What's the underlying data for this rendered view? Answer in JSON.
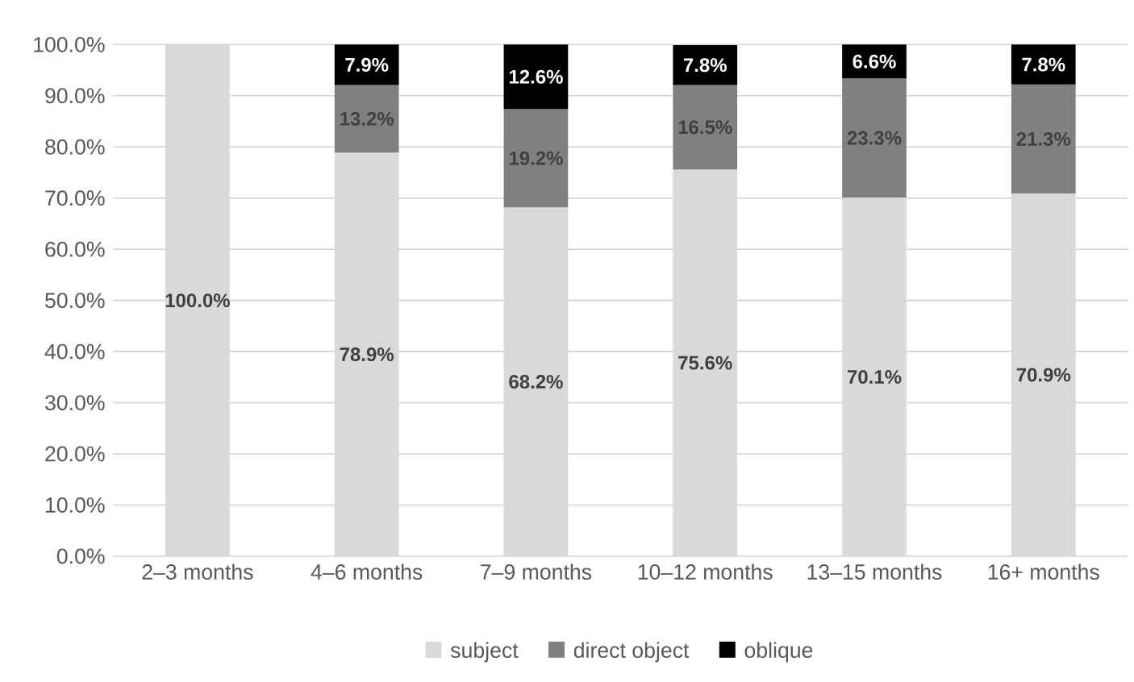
{
  "chart_data": {
    "type": "bar",
    "stacked": true,
    "categories": [
      "2–3 months",
      "4–6 months",
      "7–9 months",
      "10–12 months",
      "13–15 months",
      "16+ months"
    ],
    "series": [
      {
        "name": "subject",
        "color": "#d9d9d9",
        "values": [
          100.0,
          78.9,
          68.2,
          75.6,
          70.1,
          70.9
        ],
        "value_labels": [
          "100.0%",
          "78.9%",
          "68.2%",
          "75.6%",
          "70.1%",
          "70.9%"
        ]
      },
      {
        "name": "direct object",
        "color": "#808080",
        "values": [
          null,
          13.2,
          19.2,
          16.5,
          23.3,
          21.3
        ],
        "value_labels": [
          null,
          "13.2%",
          "19.2%",
          "16.5%",
          "23.3%",
          "21.3%"
        ]
      },
      {
        "name": "oblique",
        "color": "#000000",
        "values": [
          null,
          7.9,
          12.6,
          7.8,
          6.6,
          7.8
        ],
        "value_labels": [
          null,
          "7.9%",
          "12.6%",
          "7.8%",
          "6.6%",
          "7.8%"
        ]
      }
    ],
    "ylim": [
      0,
      100
    ],
    "yticks": [
      {
        "value": 0,
        "label": "0.0%"
      },
      {
        "value": 10,
        "label": "10.0%"
      },
      {
        "value": 20,
        "label": "20.0%"
      },
      {
        "value": 30,
        "label": "30.0%"
      },
      {
        "value": 40,
        "label": "40.0%"
      },
      {
        "value": 50,
        "label": "50.0%"
      },
      {
        "value": 60,
        "label": "60.0%"
      },
      {
        "value": 70,
        "label": "70.0%"
      },
      {
        "value": 80,
        "label": "80.0%"
      },
      {
        "value": 90,
        "label": "90.0%"
      },
      {
        "value": 100,
        "label": "100.0%"
      }
    ],
    "grid": "y",
    "legend": "bottom"
  }
}
